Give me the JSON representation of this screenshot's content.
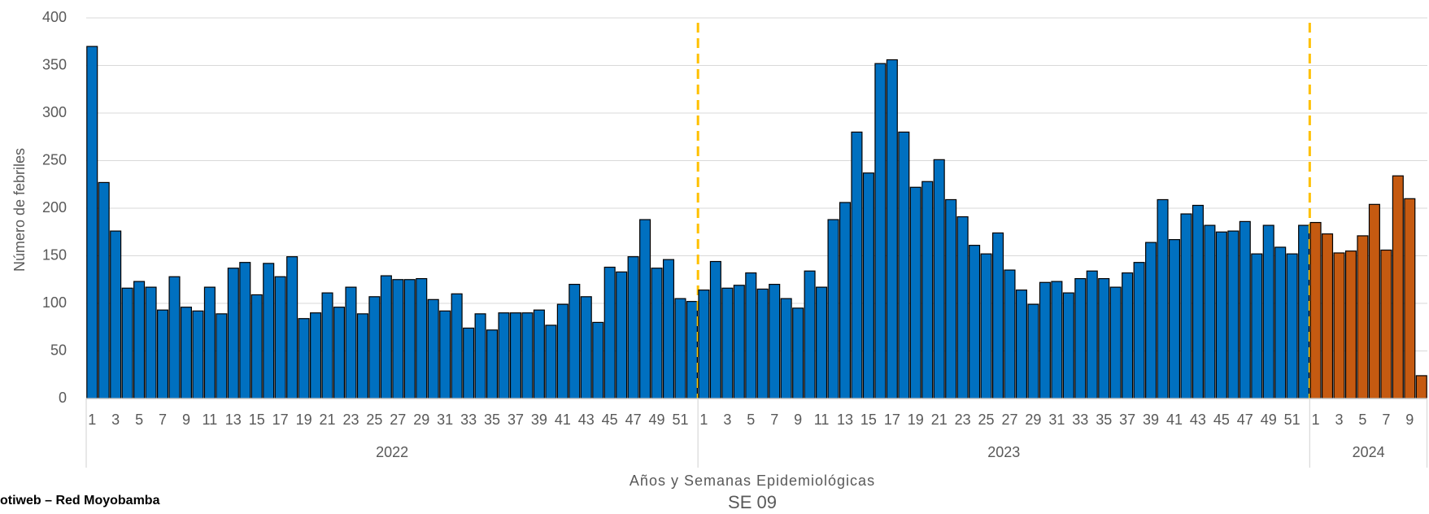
{
  "chart_data": {
    "type": "bar",
    "y_label": "Número de febriles",
    "x_label": "Años y Semanas Epidemiológicas",
    "subtitle": "SE 09",
    "source": "otiweb – Red Moyobamba",
    "ylim": [
      0,
      400
    ],
    "yticks": [
      0,
      50,
      100,
      150,
      200,
      250,
      300,
      350,
      400
    ],
    "grid": true,
    "groups": [
      {
        "label": "2022",
        "color": "#0070c0",
        "categories": [
          1,
          null,
          3,
          null,
          5,
          null,
          7,
          null,
          9,
          null,
          11,
          null,
          13,
          null,
          15,
          null,
          17,
          null,
          19,
          null,
          21,
          null,
          23,
          null,
          25,
          null,
          27,
          null,
          29,
          null,
          31,
          null,
          33,
          null,
          35,
          null,
          37,
          null,
          39,
          null,
          41,
          null,
          43,
          null,
          45,
          null,
          47,
          null,
          49,
          null,
          51,
          null
        ],
        "values": [
          370,
          227,
          176,
          116,
          123,
          117,
          93,
          128,
          96,
          92,
          117,
          89,
          137,
          143,
          109,
          142,
          128,
          149,
          84,
          90,
          111,
          96,
          117,
          89,
          107,
          129,
          125,
          125,
          126,
          104,
          92,
          110,
          74,
          89,
          72,
          90,
          90,
          90,
          93,
          77,
          99,
          120,
          107,
          80,
          138,
          133,
          149,
          188,
          137,
          146,
          105,
          102
        ]
      },
      {
        "label": "2023",
        "color": "#0070c0",
        "categories": [
          1,
          null,
          3,
          null,
          5,
          null,
          7,
          null,
          9,
          null,
          11,
          null,
          13,
          null,
          15,
          null,
          17,
          null,
          19,
          null,
          21,
          null,
          23,
          null,
          25,
          null,
          27,
          null,
          29,
          null,
          31,
          null,
          33,
          null,
          35,
          null,
          37,
          null,
          39,
          null,
          41,
          null,
          43,
          null,
          45,
          null,
          47,
          null,
          49,
          null,
          51,
          null
        ],
        "values": [
          114,
          144,
          116,
          119,
          132,
          115,
          120,
          105,
          95,
          134,
          117,
          188,
          206,
          280,
          237,
          352,
          356,
          280,
          222,
          228,
          251,
          209,
          191,
          161,
          152,
          174,
          135,
          114,
          99,
          122,
          123,
          111,
          126,
          134,
          126,
          117,
          132,
          143,
          164,
          209,
          167,
          194,
          203,
          182,
          175,
          176,
          186,
          152,
          182,
          159,
          152,
          182
        ]
      },
      {
        "label": "2024",
        "color": "#c55a11",
        "categories": [
          1,
          null,
          3,
          null,
          5,
          null,
          7,
          null,
          9,
          null
        ],
        "values": [
          185,
          173,
          153,
          155,
          171,
          204,
          156,
          234,
          210,
          24
        ]
      }
    ]
  }
}
